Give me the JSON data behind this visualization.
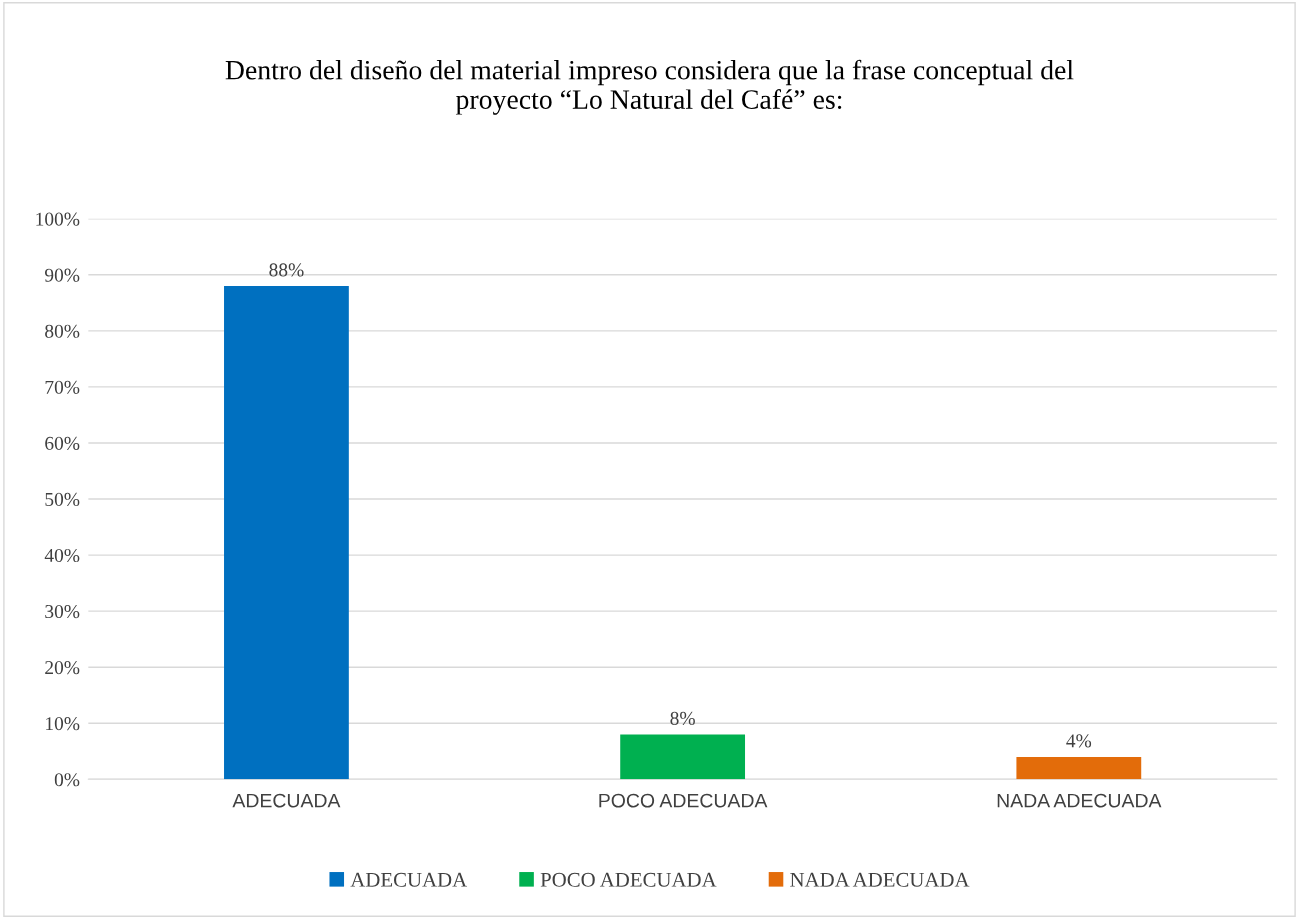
{
  "chart_data": {
    "type": "bar",
    "title": "Dentro del diseño del material impreso considera que la frase conceptual del\nproyecto “Lo Natural del Café” es:",
    "categories": [
      "ADECUADA",
      "POCO ADECUADA",
      "NADA ADECUADA"
    ],
    "stacked": true,
    "series": [
      {
        "name": "ADECUADA",
        "color": "#0070c0",
        "values": [
          88,
          null,
          null
        ],
        "value_labels": [
          "88%",
          null,
          null
        ]
      },
      {
        "name": "POCO ADECUADA",
        "color": "#00b050",
        "values": [
          null,
          8,
          null
        ],
        "value_labels": [
          null,
          "8%",
          null
        ]
      },
      {
        "name": "NADA ADECUADA",
        "color": "#e36c0a",
        "values": [
          null,
          null,
          4
        ],
        "value_labels": [
          null,
          null,
          "4%"
        ]
      }
    ],
    "ylim": [
      0,
      100
    ],
    "yticks": [
      {
        "value": 0,
        "label": "0%"
      },
      {
        "value": 10,
        "label": "10%"
      },
      {
        "value": 20,
        "label": "20%"
      },
      {
        "value": 30,
        "label": "30%"
      },
      {
        "value": 40,
        "label": "40%"
      },
      {
        "value": 50,
        "label": "50%"
      },
      {
        "value": 60,
        "label": "60%"
      },
      {
        "value": 70,
        "label": "70%"
      },
      {
        "value": 80,
        "label": "80%"
      },
      {
        "value": 90,
        "label": "90%"
      },
      {
        "value": 100,
        "label": "100%"
      }
    ],
    "grid": "y",
    "legend": "bottom"
  }
}
